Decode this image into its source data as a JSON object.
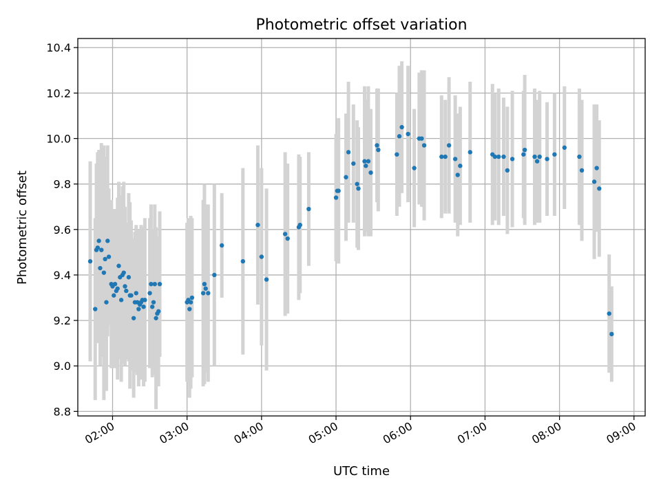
{
  "chart_data": {
    "type": "scatter",
    "title": "Photometric offset variation",
    "xlabel": "UTC time",
    "ylabel": "Photometric offset",
    "x_ticks": [
      "02:00",
      "03:00",
      "04:00",
      "05:00",
      "06:00",
      "07:00",
      "08:00",
      "09:00"
    ],
    "y_ticks": [
      "8.8",
      "9.0",
      "9.2",
      "9.4",
      "9.6",
      "9.8",
      "10.0",
      "10.2",
      "10.4"
    ],
    "xlim": [
      "01:32",
      "09:09"
    ],
    "ylim": [
      8.78,
      10.44
    ],
    "grid": true,
    "colors": {
      "marker": "#1f77b4",
      "errorbar": "#d3d3d3",
      "grid": "#b0b0b0"
    },
    "series": [
      {
        "x": [
          "01:42",
          "01:46",
          "01:47",
          "01:48",
          "01:49",
          "01:50",
          "01:51",
          "01:53",
          "01:54",
          "01:55",
          "01:56",
          "01:57",
          "01:59",
          "02:00",
          "02:01",
          "02:02",
          "02:03",
          "02:04",
          "02:05",
          "02:06",
          "02:07",
          "02:08",
          "02:09",
          "02:10",
          "02:11",
          "02:13",
          "02:14",
          "02:15",
          "02:17",
          "02:18",
          "02:19",
          "02:20",
          "02:21",
          "02:22",
          "02:23",
          "02:24",
          "02:25",
          "02:26",
          "02:30",
          "02:31",
          "02:32",
          "02:33",
          "02:34",
          "02:35",
          "02:36",
          "02:37",
          "02:38",
          "03:00",
          "03:01",
          "03:02",
          "03:03",
          "03:04",
          "03:13",
          "03:14",
          "03:15",
          "03:17",
          "03:22",
          "03:28",
          "03:45",
          "03:57",
          "04:00",
          "04:04",
          "04:19",
          "04:21",
          "04:30",
          "04:31",
          "04:38",
          "05:00",
          "05:01",
          "05:02",
          "05:08",
          "05:10",
          "05:14",
          "05:17",
          "05:18",
          "05:23",
          "05:24",
          "05:26",
          "05:28",
          "05:33",
          "05:34",
          "05:49",
          "05:51",
          "05:53",
          "05:58",
          "06:03",
          "06:07",
          "06:09",
          "06:11",
          "06:25",
          "06:28",
          "06:31",
          "06:36",
          "06:38",
          "06:40",
          "06:48",
          "07:06",
          "07:08",
          "07:11",
          "07:15",
          "07:18",
          "07:22",
          "07:31",
          "07:32",
          "07:40",
          "07:42",
          "07:44",
          "07:50",
          "07:56",
          "08:04",
          "08:16",
          "08:18",
          "08:28",
          "08:30",
          "08:32",
          "08:40",
          "08:42"
        ],
        "y": [
          9.46,
          9.25,
          9.51,
          9.52,
          9.55,
          9.43,
          9.51,
          9.41,
          9.47,
          9.28,
          9.55,
          9.48,
          9.36,
          9.35,
          9.31,
          9.36,
          9.33,
          9.34,
          9.44,
          9.39,
          9.29,
          9.4,
          9.41,
          9.35,
          9.33,
          9.39,
          9.31,
          9.31,
          9.21,
          9.28,
          9.32,
          9.28,
          9.25,
          9.27,
          9.28,
          9.29,
          9.26,
          9.29,
          9.32,
          9.36,
          9.26,
          9.28,
          9.36,
          9.21,
          9.23,
          9.24,
          9.36,
          9.28,
          9.29,
          9.25,
          9.28,
          9.3,
          9.32,
          9.36,
          9.34,
          9.32,
          9.4,
          9.53,
          9.46,
          9.62,
          9.48,
          9.38,
          9.58,
          9.56,
          9.61,
          9.62,
          9.69,
          9.74,
          9.77,
          9.77,
          9.83,
          9.94,
          9.89,
          9.8,
          9.78,
          9.9,
          9.88,
          9.9,
          9.85,
          9.97,
          9.95,
          9.93,
          10.01,
          10.05,
          10.02,
          9.87,
          10.0,
          10.0,
          9.97,
          9.92,
          9.92,
          9.97,
          9.91,
          9.84,
          9.88,
          9.94,
          9.93,
          9.92,
          9.92,
          9.92,
          9.86,
          9.91,
          9.93,
          9.95,
          9.92,
          9.9,
          9.92,
          9.91,
          9.93,
          9.96,
          9.92,
          9.86,
          9.81,
          9.87,
          9.78,
          9.23,
          9.14
        ],
        "err": [
          0.44,
          0.4,
          0.38,
          0.42,
          0.4,
          0.43,
          0.47,
          0.56,
          0.45,
          0.39,
          0.42,
          0.3,
          0.37,
          0.34,
          0.32,
          0.33,
          0.34,
          0.4,
          0.37,
          0.36,
          0.36,
          0.39,
          0.4,
          0.35,
          0.3,
          0.37,
          0.41,
          0.33,
          0.35,
          0.31,
          0.3,
          0.32,
          0.34,
          0.33,
          0.34,
          0.31,
          0.35,
          0.36,
          0.33,
          0.35,
          0.31,
          0.32,
          0.35,
          0.4,
          0.31,
          0.33,
          0.32,
          0.35,
          0.36,
          0.39,
          0.38,
          0.35,
          0.41,
          0.44,
          0.37,
          0.39,
          0.4,
          0.23,
          0.41,
          0.35,
          0.39,
          0.4,
          0.36,
          0.33,
          0.32,
          0.3,
          0.25,
          0.28,
          0.21,
          0.32,
          0.28,
          0.31,
          0.26,
          0.28,
          0.27,
          0.33,
          0.29,
          0.33,
          0.28,
          0.25,
          0.27,
          0.27,
          0.31,
          0.29,
          0.3,
          0.26,
          0.29,
          0.3,
          0.33,
          0.27,
          0.25,
          0.3,
          0.28,
          0.27,
          0.26,
          0.31,
          0.31,
          0.28,
          0.3,
          0.26,
          0.28,
          0.3,
          0.28,
          0.33,
          0.3,
          0.27,
          0.29,
          0.25,
          0.27,
          0.27,
          0.3,
          0.31,
          0.34,
          0.28,
          0.3,
          0.26,
          0.21
        ]
      }
    ]
  }
}
